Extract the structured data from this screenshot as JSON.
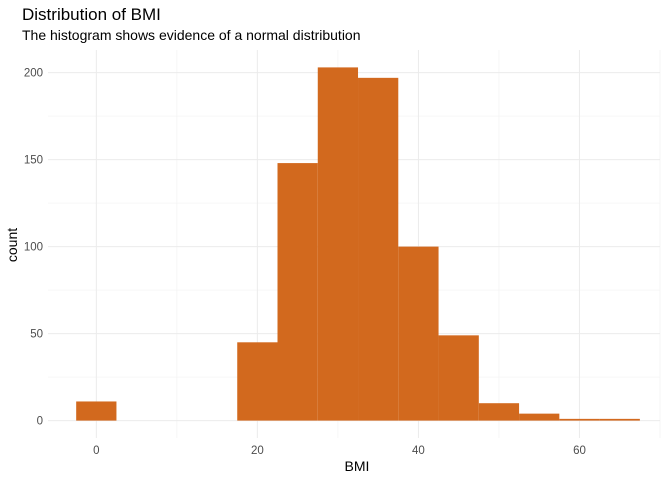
{
  "chart_data": {
    "type": "bar",
    "title": "Distribution of BMI",
    "subtitle": "The histogram shows evidence of a normal distribution",
    "xlabel": "BMI",
    "ylabel": "count",
    "bin_width": 5,
    "bins": [
      {
        "x_start": -2.5,
        "x_end": 2.5,
        "count": 11
      },
      {
        "x_start": 2.5,
        "x_end": 7.5,
        "count": 0
      },
      {
        "x_start": 7.5,
        "x_end": 12.5,
        "count": 0
      },
      {
        "x_start": 12.5,
        "x_end": 17.5,
        "count": 0
      },
      {
        "x_start": 17.5,
        "x_end": 22.5,
        "count": 45
      },
      {
        "x_start": 22.5,
        "x_end": 27.5,
        "count": 148
      },
      {
        "x_start": 27.5,
        "x_end": 32.5,
        "count": 203
      },
      {
        "x_start": 32.5,
        "x_end": 37.5,
        "count": 197
      },
      {
        "x_start": 37.5,
        "x_end": 42.5,
        "count": 100
      },
      {
        "x_start": 42.5,
        "x_end": 47.5,
        "count": 49
      },
      {
        "x_start": 47.5,
        "x_end": 52.5,
        "count": 10
      },
      {
        "x_start": 52.5,
        "x_end": 57.5,
        "count": 4
      },
      {
        "x_start": 57.5,
        "x_end": 62.5,
        "count": 1
      },
      {
        "x_start": 62.5,
        "x_end": 67.5,
        "count": 1
      }
    ],
    "xlim": [
      -6,
      70
    ],
    "ylim": [
      -10,
      213
    ],
    "x_ticks": [
      0,
      20,
      40,
      60
    ],
    "y_ticks": [
      0,
      50,
      100,
      150,
      200
    ],
    "x_tick_labels": [
      "0",
      "20",
      "40",
      "60"
    ],
    "y_tick_labels": [
      "0",
      "50",
      "100",
      "150",
      "200"
    ],
    "grid": true,
    "legend": "none",
    "bar_color": "#D2691E"
  }
}
